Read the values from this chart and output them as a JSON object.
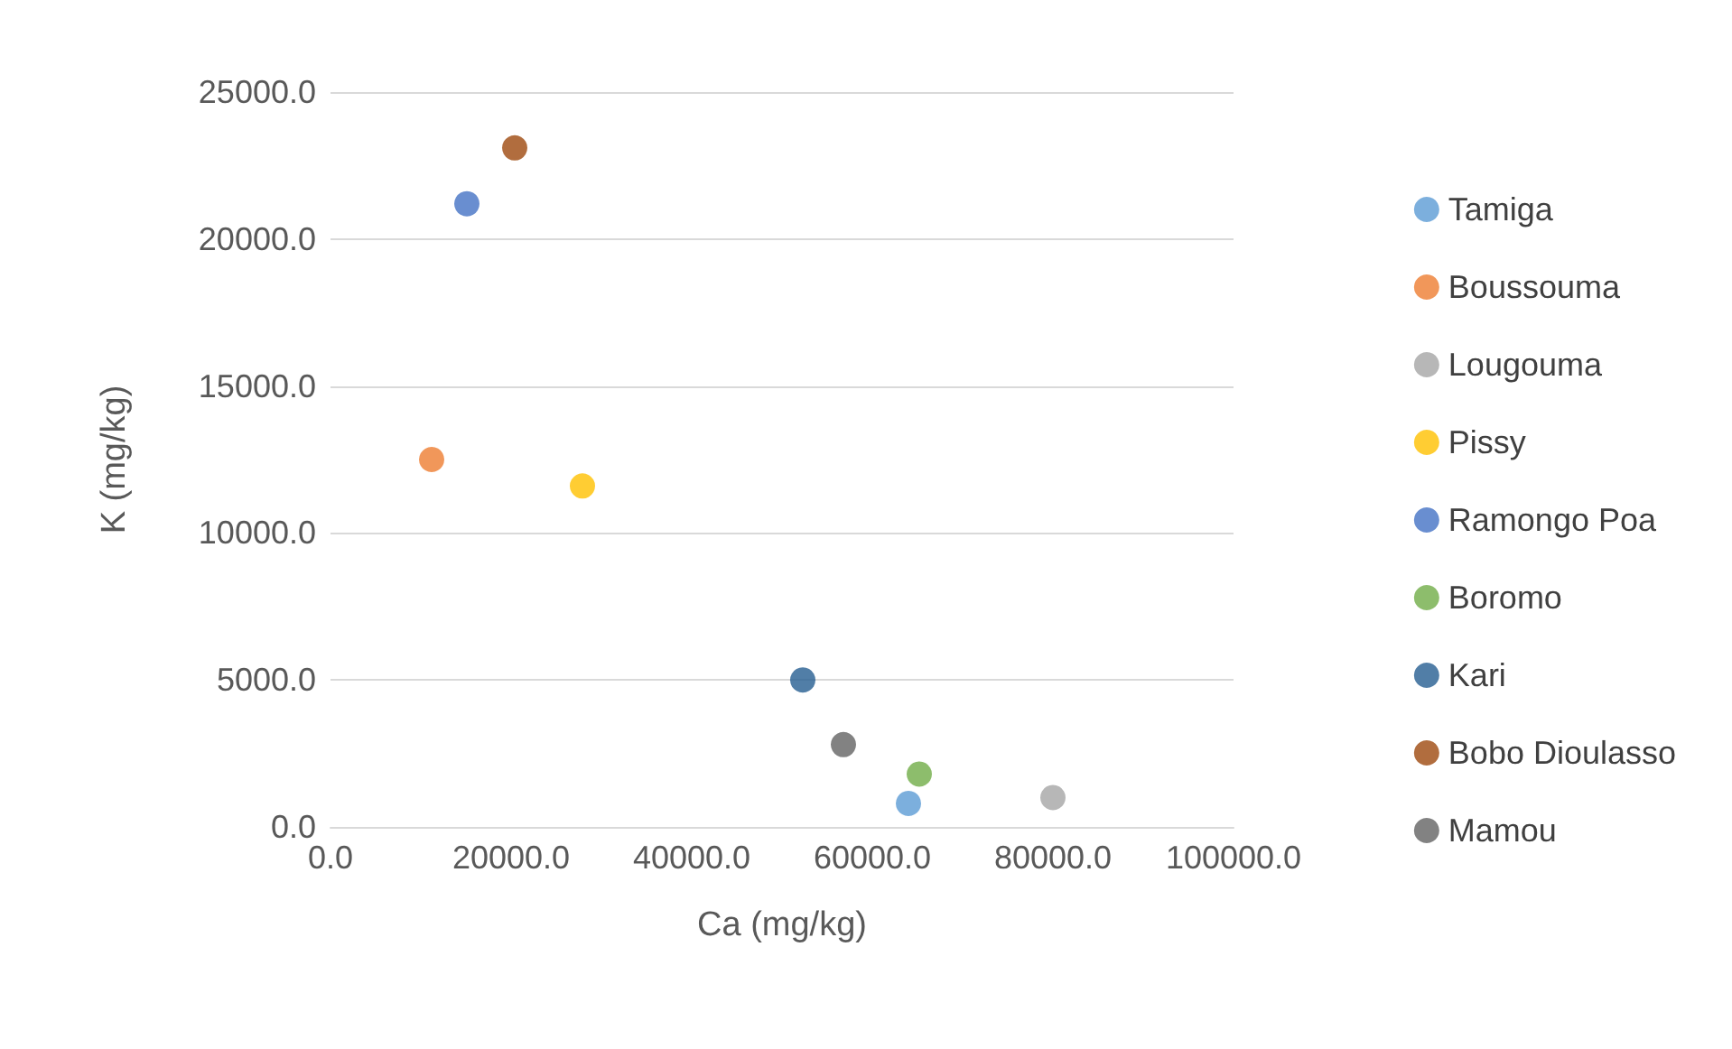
{
  "chart_data": {
    "type": "scatter",
    "xlabel": "Ca (mg/kg)",
    "ylabel": "K (mg/kg)",
    "xlim": [
      0,
      100000
    ],
    "xticks": [
      {
        "value": 0,
        "label": "0.0"
      },
      {
        "value": 20000,
        "label": "20000.0"
      },
      {
        "value": 40000,
        "label": "40000.0"
      },
      {
        "value": 60000,
        "label": "60000.0"
      },
      {
        "value": 80000,
        "label": "80000.0"
      },
      {
        "value": 100000,
        "label": "100000.0"
      }
    ],
    "ylim": [
      0,
      25000
    ],
    "yticks": [
      {
        "value": 0,
        "label": "0.0"
      },
      {
        "value": 5000,
        "label": "5000.0"
      },
      {
        "value": 10000,
        "label": "10000.0"
      },
      {
        "value": 15000,
        "label": "15000.0"
      },
      {
        "value": 20000,
        "label": "20000.0"
      },
      {
        "value": 25000,
        "label": "25000.0"
      }
    ],
    "grid": "y",
    "legend": "right",
    "marker": "circle",
    "series": [
      {
        "name": "Tamiga",
        "color": "#5b9bd5",
        "x": [
          64000
        ],
        "values": [
          800
        ]
      },
      {
        "name": "Boussouma",
        "color": "#ed7d31",
        "x": [
          11200
        ],
        "values": [
          12500
        ]
      },
      {
        "name": "Lougouma",
        "color": "#a5a5a5",
        "x": [
          80000
        ],
        "values": [
          1000
        ]
      },
      {
        "name": "Pissy",
        "color": "#ffc000",
        "x": [
          27900
        ],
        "values": [
          11600
        ]
      },
      {
        "name": "Ramongo Poa",
        "color": "#4472c4",
        "x": [
          15100
        ],
        "values": [
          21200
        ]
      },
      {
        "name": "Boromo",
        "color": "#70ad47",
        "x": [
          65200
        ],
        "values": [
          1800
        ]
      },
      {
        "name": "Kari",
        "color": "#255e91",
        "x": [
          52300
        ],
        "values": [
          5000
        ]
      },
      {
        "name": "Bobo Dioulasso",
        "color": "#9e480e",
        "x": [
          20400
        ],
        "values": [
          23100
        ]
      },
      {
        "name": "Mamou",
        "color": "#636363",
        "x": [
          56800
        ],
        "values": [
          2800
        ]
      }
    ]
  }
}
